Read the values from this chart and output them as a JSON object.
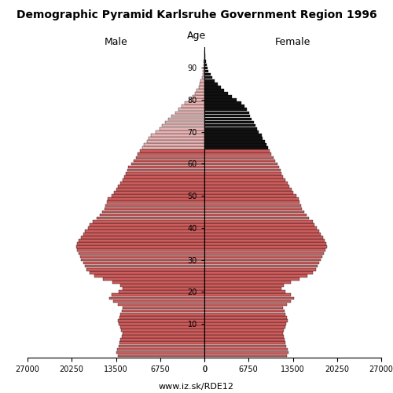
{
  "title": "Demographic Pyramid Karlsruhe Government Region 1996",
  "male_label": "Male",
  "female_label": "Female",
  "age_label": "Age",
  "footnote": "www.iz.sk/RDE12",
  "xlim": 27000,
  "bar_color_main": "#cd5c5c",
  "bar_color_old_male": "#e8b4b4",
  "bar_color_old_female": "#111111",
  "old_threshold": 65,
  "background_color": "#ffffff",
  "ages": [
    0,
    1,
    2,
    3,
    4,
    5,
    6,
    7,
    8,
    9,
    10,
    11,
    12,
    13,
    14,
    15,
    16,
    17,
    18,
    19,
    20,
    21,
    22,
    23,
    24,
    25,
    26,
    27,
    28,
    29,
    30,
    31,
    32,
    33,
    34,
    35,
    36,
    37,
    38,
    39,
    40,
    41,
    42,
    43,
    44,
    45,
    46,
    47,
    48,
    49,
    50,
    51,
    52,
    53,
    54,
    55,
    56,
    57,
    58,
    59,
    60,
    61,
    62,
    63,
    64,
    65,
    66,
    67,
    68,
    69,
    70,
    71,
    72,
    73,
    74,
    75,
    76,
    77,
    78,
    79,
    80,
    81,
    82,
    83,
    84,
    85,
    86,
    87,
    88,
    89,
    90,
    91,
    92,
    93,
    94,
    95
  ],
  "male": [
    13200,
    13400,
    13300,
    13100,
    13000,
    12800,
    12600,
    12500,
    12700,
    12900,
    13100,
    13200,
    13000,
    12800,
    12600,
    12500,
    13200,
    13900,
    14500,
    14200,
    13100,
    12500,
    12800,
    14000,
    15500,
    16800,
    17500,
    18000,
    18200,
    18500,
    18800,
    19000,
    19200,
    19400,
    19600,
    19500,
    19200,
    18800,
    18500,
    18200,
    17800,
    17500,
    17100,
    16500,
    16000,
    15600,
    15300,
    15100,
    14900,
    14800,
    14200,
    13800,
    13500,
    13200,
    12900,
    12500,
    12200,
    12000,
    11800,
    11600,
    11200,
    10800,
    10500,
    10200,
    9800,
    9500,
    9200,
    8800,
    8500,
    8200,
    7500,
    6900,
    6500,
    6000,
    5500,
    5000,
    4500,
    4000,
    3500,
    3000,
    2300,
    1800,
    1500,
    1200,
    900,
    700,
    550,
    400,
    300,
    200,
    150,
    100,
    70,
    50,
    30,
    20
  ],
  "female": [
    12600,
    12800,
    12700,
    12500,
    12400,
    12200,
    12100,
    12000,
    12100,
    12300,
    12500,
    12700,
    12600,
    12400,
    12200,
    12000,
    12600,
    13200,
    13700,
    13200,
    12300,
    11800,
    12100,
    13200,
    14500,
    15700,
    16500,
    17000,
    17300,
    17500,
    17800,
    18000,
    18200,
    18500,
    18700,
    18600,
    18400,
    18100,
    17800,
    17500,
    17200,
    16800,
    16500,
    16000,
    15600,
    15200,
    14900,
    14700,
    14500,
    14400,
    14000,
    13600,
    13300,
    13000,
    12700,
    12300,
    12000,
    11800,
    11600,
    11400,
    11100,
    10800,
    10500,
    10200,
    9900,
    9700,
    9500,
    9200,
    8900,
    8700,
    8300,
    8000,
    7800,
    7500,
    7200,
    7000,
    6800,
    6500,
    6100,
    5600,
    4900,
    4200,
    3600,
    3000,
    2500,
    2000,
    1600,
    1200,
    900,
    650,
    450,
    300,
    200,
    130,
    80,
    50
  ]
}
